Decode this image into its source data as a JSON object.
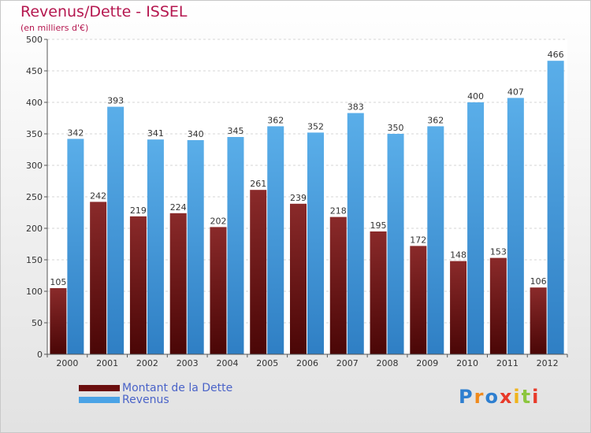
{
  "title": "Revenus/Dette - ISSEL",
  "subtitle": "(en milliers d'€)",
  "colors": {
    "title": "#b5174f",
    "dette": "#7a1a1a",
    "revenus": "#4aa3e6",
    "legend_text": "#4a63c8"
  },
  "legend": [
    {
      "label": "Montant de la Dette",
      "color": "#6b0f0f"
    },
    {
      "label": "Revenus",
      "color": "#4aa3e6"
    }
  ],
  "logo": {
    "text": "Proxiti"
  },
  "chart_data": {
    "type": "bar",
    "categories": [
      "2000",
      "2001",
      "2002",
      "2003",
      "2004",
      "2005",
      "2006",
      "2007",
      "2008",
      "2009",
      "2010",
      "2011",
      "2012"
    ],
    "series": [
      {
        "name": "Montant de la Dette",
        "values": [
          105,
          242,
          219,
          224,
          202,
          261,
          239,
          218,
          195,
          172,
          148,
          153,
          106
        ]
      },
      {
        "name": "Revenus",
        "values": [
          342,
          393,
          341,
          340,
          345,
          362,
          352,
          383,
          350,
          362,
          400,
          407,
          466
        ]
      }
    ],
    "ylim": [
      0,
      500
    ],
    "yticks": [
      0,
      50,
      100,
      150,
      200,
      250,
      300,
      350,
      400,
      450,
      500
    ],
    "grid": true,
    "legend_position": "bottom-left"
  }
}
